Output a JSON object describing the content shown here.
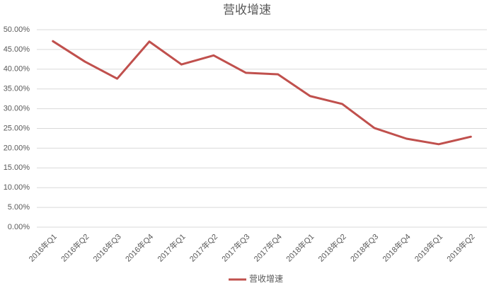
{
  "chart_data": {
    "type": "line",
    "title": "营收增速",
    "categories": [
      "2016年Q1",
      "2016年Q2",
      "2016年Q3",
      "2016年Q4",
      "2017年Q1",
      "2017年Q2",
      "2017年Q3",
      "2017年Q4",
      "2018年Q1",
      "2018年Q2",
      "2018年Q3",
      "2018年Q4",
      "2019年Q1",
      "2019年Q2"
    ],
    "series": [
      {
        "name": "营收增速",
        "color": "#c0504d",
        "values": [
          47.1,
          41.9,
          37.6,
          47.0,
          41.2,
          43.5,
          39.1,
          38.7,
          33.2,
          31.2,
          25.1,
          22.4,
          21.0,
          22.9
        ]
      }
    ],
    "ylim": [
      0,
      50
    ],
    "yticks": [
      {
        "value": 0,
        "label": "0.00%"
      },
      {
        "value": 5,
        "label": "5.00%"
      },
      {
        "value": 10,
        "label": "10.00%"
      },
      {
        "value": 15,
        "label": "15.00%"
      },
      {
        "value": 20,
        "label": "20.00%"
      },
      {
        "value": 25,
        "label": "25.00%"
      },
      {
        "value": 30,
        "label": "30.00%"
      },
      {
        "value": 35,
        "label": "35.00%"
      },
      {
        "value": 40,
        "label": "40.00%"
      },
      {
        "value": 45,
        "label": "45.00%"
      },
      {
        "value": 50,
        "label": "50.00%"
      }
    ],
    "grid": true,
    "legend": "bottom"
  }
}
